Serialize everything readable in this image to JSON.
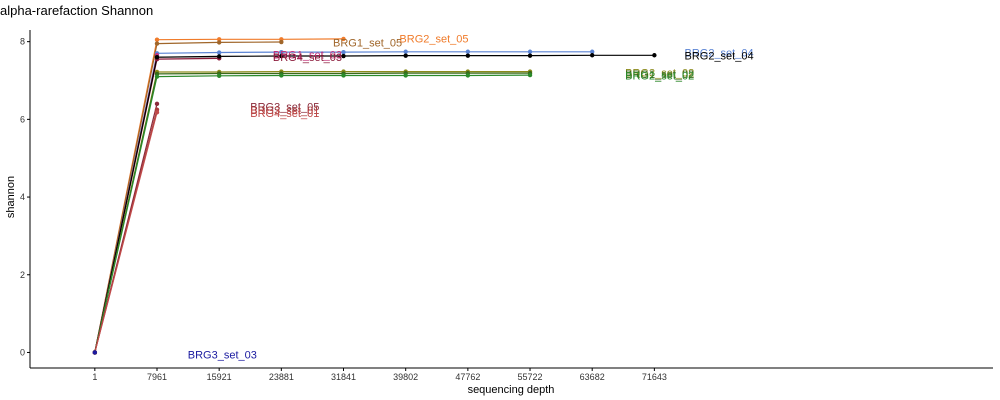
{
  "chart_data": {
    "type": "line",
    "title": "alpha-rarefaction Shannon",
    "xlabel": "sequencing depth",
    "ylabel": "shannon",
    "x_ticks": [
      1,
      7961,
      15921,
      23881,
      31841,
      39802,
      47762,
      55722,
      63682,
      71643
    ],
    "xlim": [
      -8300,
      115000
    ],
    "y_ticks": [
      0,
      2,
      4,
      6,
      8
    ],
    "ylim": [
      -0.4,
      8.3
    ],
    "grid": false,
    "legend": "none",
    "series": [
      {
        "name": "BRG2_set_05",
        "color": "#f07b2a",
        "x": [
          1,
          7961,
          15921,
          23881,
          31841
        ],
        "y": [
          0,
          8.05,
          8.06,
          8.06,
          8.07
        ]
      },
      {
        "name": "BRG1_set_05",
        "color": "#a0662a",
        "x": [
          1,
          7961,
          15921,
          23881
        ],
        "y": [
          0,
          7.95,
          7.98,
          7.99
        ]
      },
      {
        "name": "BRG2_set_04",
        "color": "#5b84d4",
        "x": [
          1,
          7961,
          15921,
          23881,
          31841,
          39802,
          47762,
          55722,
          63682
        ],
        "y": [
          0,
          7.7,
          7.72,
          7.73,
          7.73,
          7.74,
          7.74,
          7.74,
          7.74
        ]
      },
      {
        "name": "BRG1_set_03",
        "color": "#c4307a",
        "x": [
          1,
          7961
        ],
        "y": [
          0,
          7.65
        ]
      },
      {
        "name": "BRG3_set_04",
        "color": "#666666",
        "x": [
          1,
          7961,
          15921
        ],
        "y": [
          0,
          7.6,
          7.61
        ]
      },
      {
        "name": "BRG4_set_03",
        "color": "#8b1a3a",
        "x": [
          1,
          7961,
          15921
        ],
        "y": [
          0,
          7.55,
          7.57
        ]
      },
      {
        "name": "BRG2_set_04 ",
        "color": "#000000",
        "x": [
          1,
          7961,
          15921,
          23881,
          31841,
          39802,
          47762,
          55722,
          63682,
          71643
        ],
        "y": [
          0,
          7.6,
          7.62,
          7.63,
          7.63,
          7.64,
          7.64,
          7.64,
          7.65,
          7.65
        ]
      },
      {
        "name": "BRG3_set_02",
        "color": "#8a8a1a",
        "x": [
          1,
          7961,
          15921,
          23881,
          31841,
          39802,
          47762,
          55722
        ],
        "y": [
          0,
          7.22,
          7.22,
          7.23,
          7.23,
          7.23,
          7.23,
          7.23
        ]
      },
      {
        "name": "BRG1_set_02",
        "color": "#3a6a1a",
        "x": [
          1,
          7961,
          15921,
          23881,
          31841,
          39802,
          47762,
          55722
        ],
        "y": [
          0,
          7.17,
          7.18,
          7.18,
          7.18,
          7.19,
          7.19,
          7.19
        ]
      },
      {
        "name": "BRG2_set_02",
        "color": "#2a8a2a",
        "x": [
          1,
          7961,
          15921,
          23881,
          31841,
          39802,
          47762,
          55722
        ],
        "y": [
          0,
          7.1,
          7.12,
          7.13,
          7.13,
          7.13,
          7.13,
          7.14
        ]
      },
      {
        "name": "BRG3_set_05",
        "color": "#8b2a3a",
        "x": [
          1,
          7961
        ],
        "y": [
          0,
          6.4
        ]
      },
      {
        "name": "BRG3_set_01",
        "color": "#a83a3a",
        "x": [
          1,
          7961
        ],
        "y": [
          0,
          6.25
        ]
      },
      {
        "name": "BRG4_set_01",
        "color": "#c04a4a",
        "x": [
          1,
          7961
        ],
        "y": [
          0,
          6.18
        ]
      },
      {
        "name": "BRG3_set_03",
        "color": "#1a1aa0",
        "x": [
          1
        ],
        "y": [
          0
        ]
      }
    ],
    "annotations": [
      {
        "text": "BRG2_set_05",
        "color": "#f07b2a",
        "x": 39000,
        "y": 8.08
      },
      {
        "text": "BRG1_set_05",
        "color": "#a0662a",
        "x": 30500,
        "y": 7.98
      },
      {
        "text": "BRG1_set_03",
        "color": "#c4307a",
        "x": 22800,
        "y": 7.67
      },
      {
        "text": "BRG4_set_03",
        "color": "#8b1a3a",
        "x": 22800,
        "y": 7.6
      },
      {
        "text": "BRG2_set_04",
        "color": "#5b84d4",
        "x": 75500,
        "y": 7.72
      },
      {
        "text": "BRG2_set_04",
        "color": "#000000",
        "x": 75500,
        "y": 7.65
      },
      {
        "text": "BRG3_set_02",
        "color": "#8a8a1a",
        "x": 67900,
        "y": 7.21
      },
      {
        "text": "BRG1_set_02",
        "color": "#3a6a1a",
        "x": 67900,
        "y": 7.17
      },
      {
        "text": "BRG2_set_02",
        "color": "#2a8a2a",
        "x": 67900,
        "y": 7.13
      },
      {
        "text": "BRG3_set_05",
        "color": "#8b2a3a",
        "x": 19900,
        "y": 6.33
      },
      {
        "text": "BRG3_set_01",
        "color": "#a83a3a",
        "x": 19900,
        "y": 6.24
      },
      {
        "text": "BRG4_set_01",
        "color": "#c04a4a",
        "x": 19900,
        "y": 6.17
      },
      {
        "text": "BRG3_set_03",
        "color": "#1a1aa0",
        "x": 11900,
        "y": -0.05
      }
    ]
  }
}
